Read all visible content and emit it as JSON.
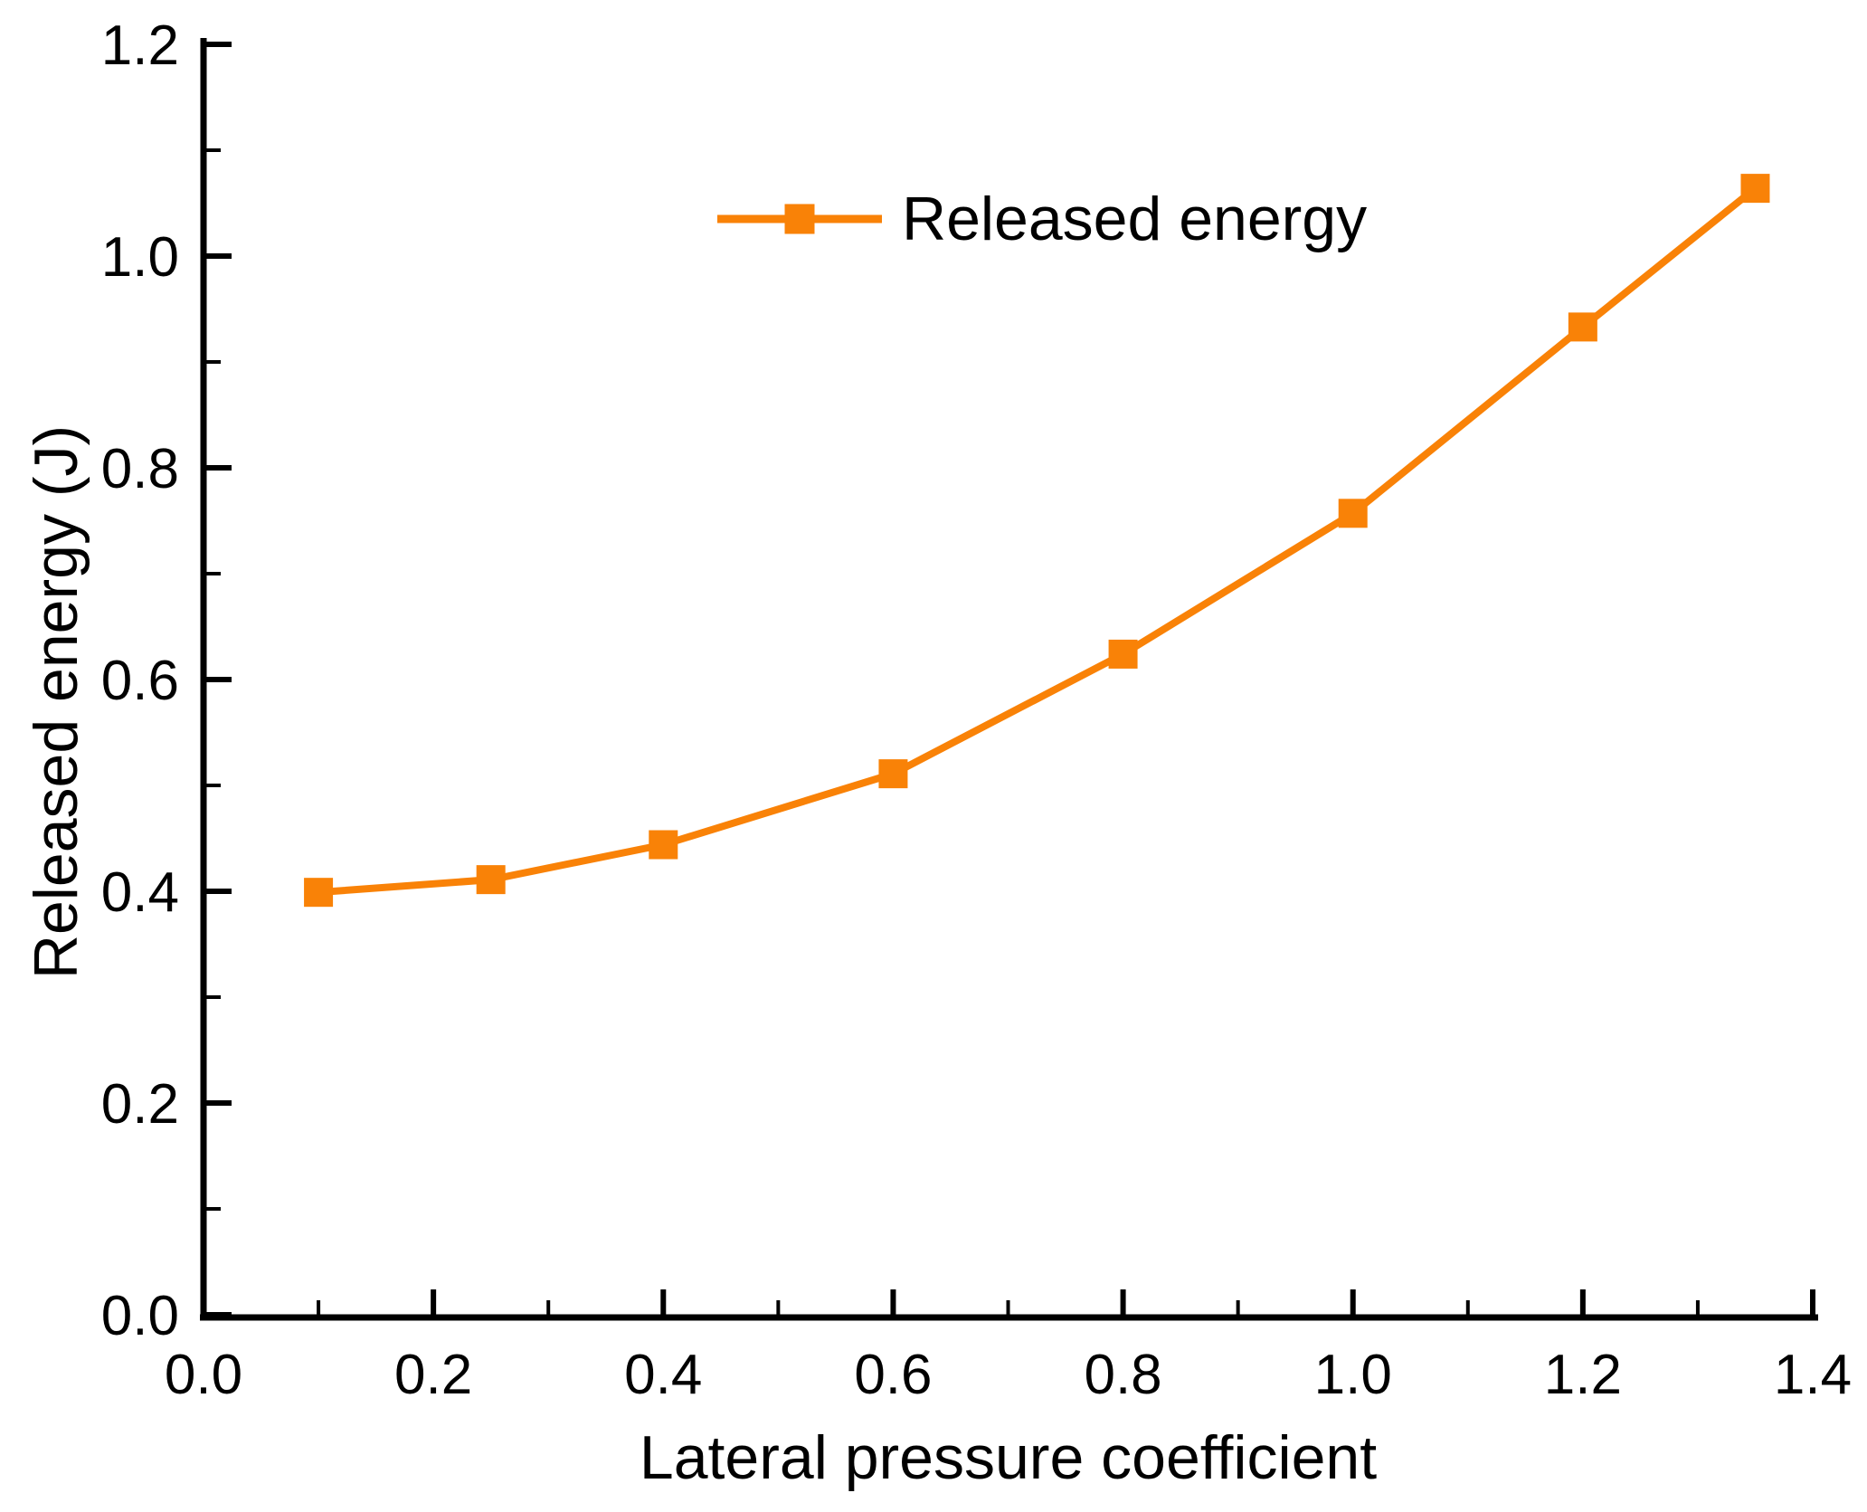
{
  "chart_data": {
    "type": "line",
    "title": "",
    "xlabel": "Lateral pressure coefficient",
    "ylabel": "Released energy (J)",
    "xlim": [
      0.0,
      1.4
    ],
    "ylim": [
      0.0,
      1.2
    ],
    "grid": false,
    "legend_position": "top-center",
    "marker": "square",
    "x_major_ticks": [
      0.0,
      0.2,
      0.4,
      0.6,
      0.8,
      1.0,
      1.2,
      1.4
    ],
    "x_tick_labels": [
      "0.0",
      "0.2",
      "0.4",
      "0.6",
      "0.8",
      "1.0",
      "1.2",
      "1.4"
    ],
    "x_minor_ticks": [
      0.1,
      0.3,
      0.5,
      0.7,
      0.9,
      1.1,
      1.3
    ],
    "y_major_ticks": [
      0.0,
      0.2,
      0.4,
      0.6,
      0.8,
      1.0,
      1.2
    ],
    "y_tick_labels": [
      "0.0",
      "0.2",
      "0.4",
      "0.6",
      "0.8",
      "1.0",
      "1.2"
    ],
    "y_minor_ticks": [
      0.1,
      0.3,
      0.5,
      0.7,
      0.9,
      1.1
    ],
    "series": [
      {
        "name": "Released energy",
        "x": [
          0.1,
          0.25,
          0.4,
          0.6,
          0.8,
          1.0,
          1.2,
          1.35
        ],
        "y": [
          0.399,
          0.411,
          0.444,
          0.511,
          0.624,
          0.757,
          0.933,
          1.064
        ]
      }
    ],
    "colors": {
      "series": "#F98207",
      "axis": "#000000",
      "background": "#FFFFFF"
    }
  },
  "legend": {
    "label": "Released energy"
  },
  "axes": {
    "x_title": "Lateral pressure coefficient",
    "y_title": "Released energy (J)"
  }
}
